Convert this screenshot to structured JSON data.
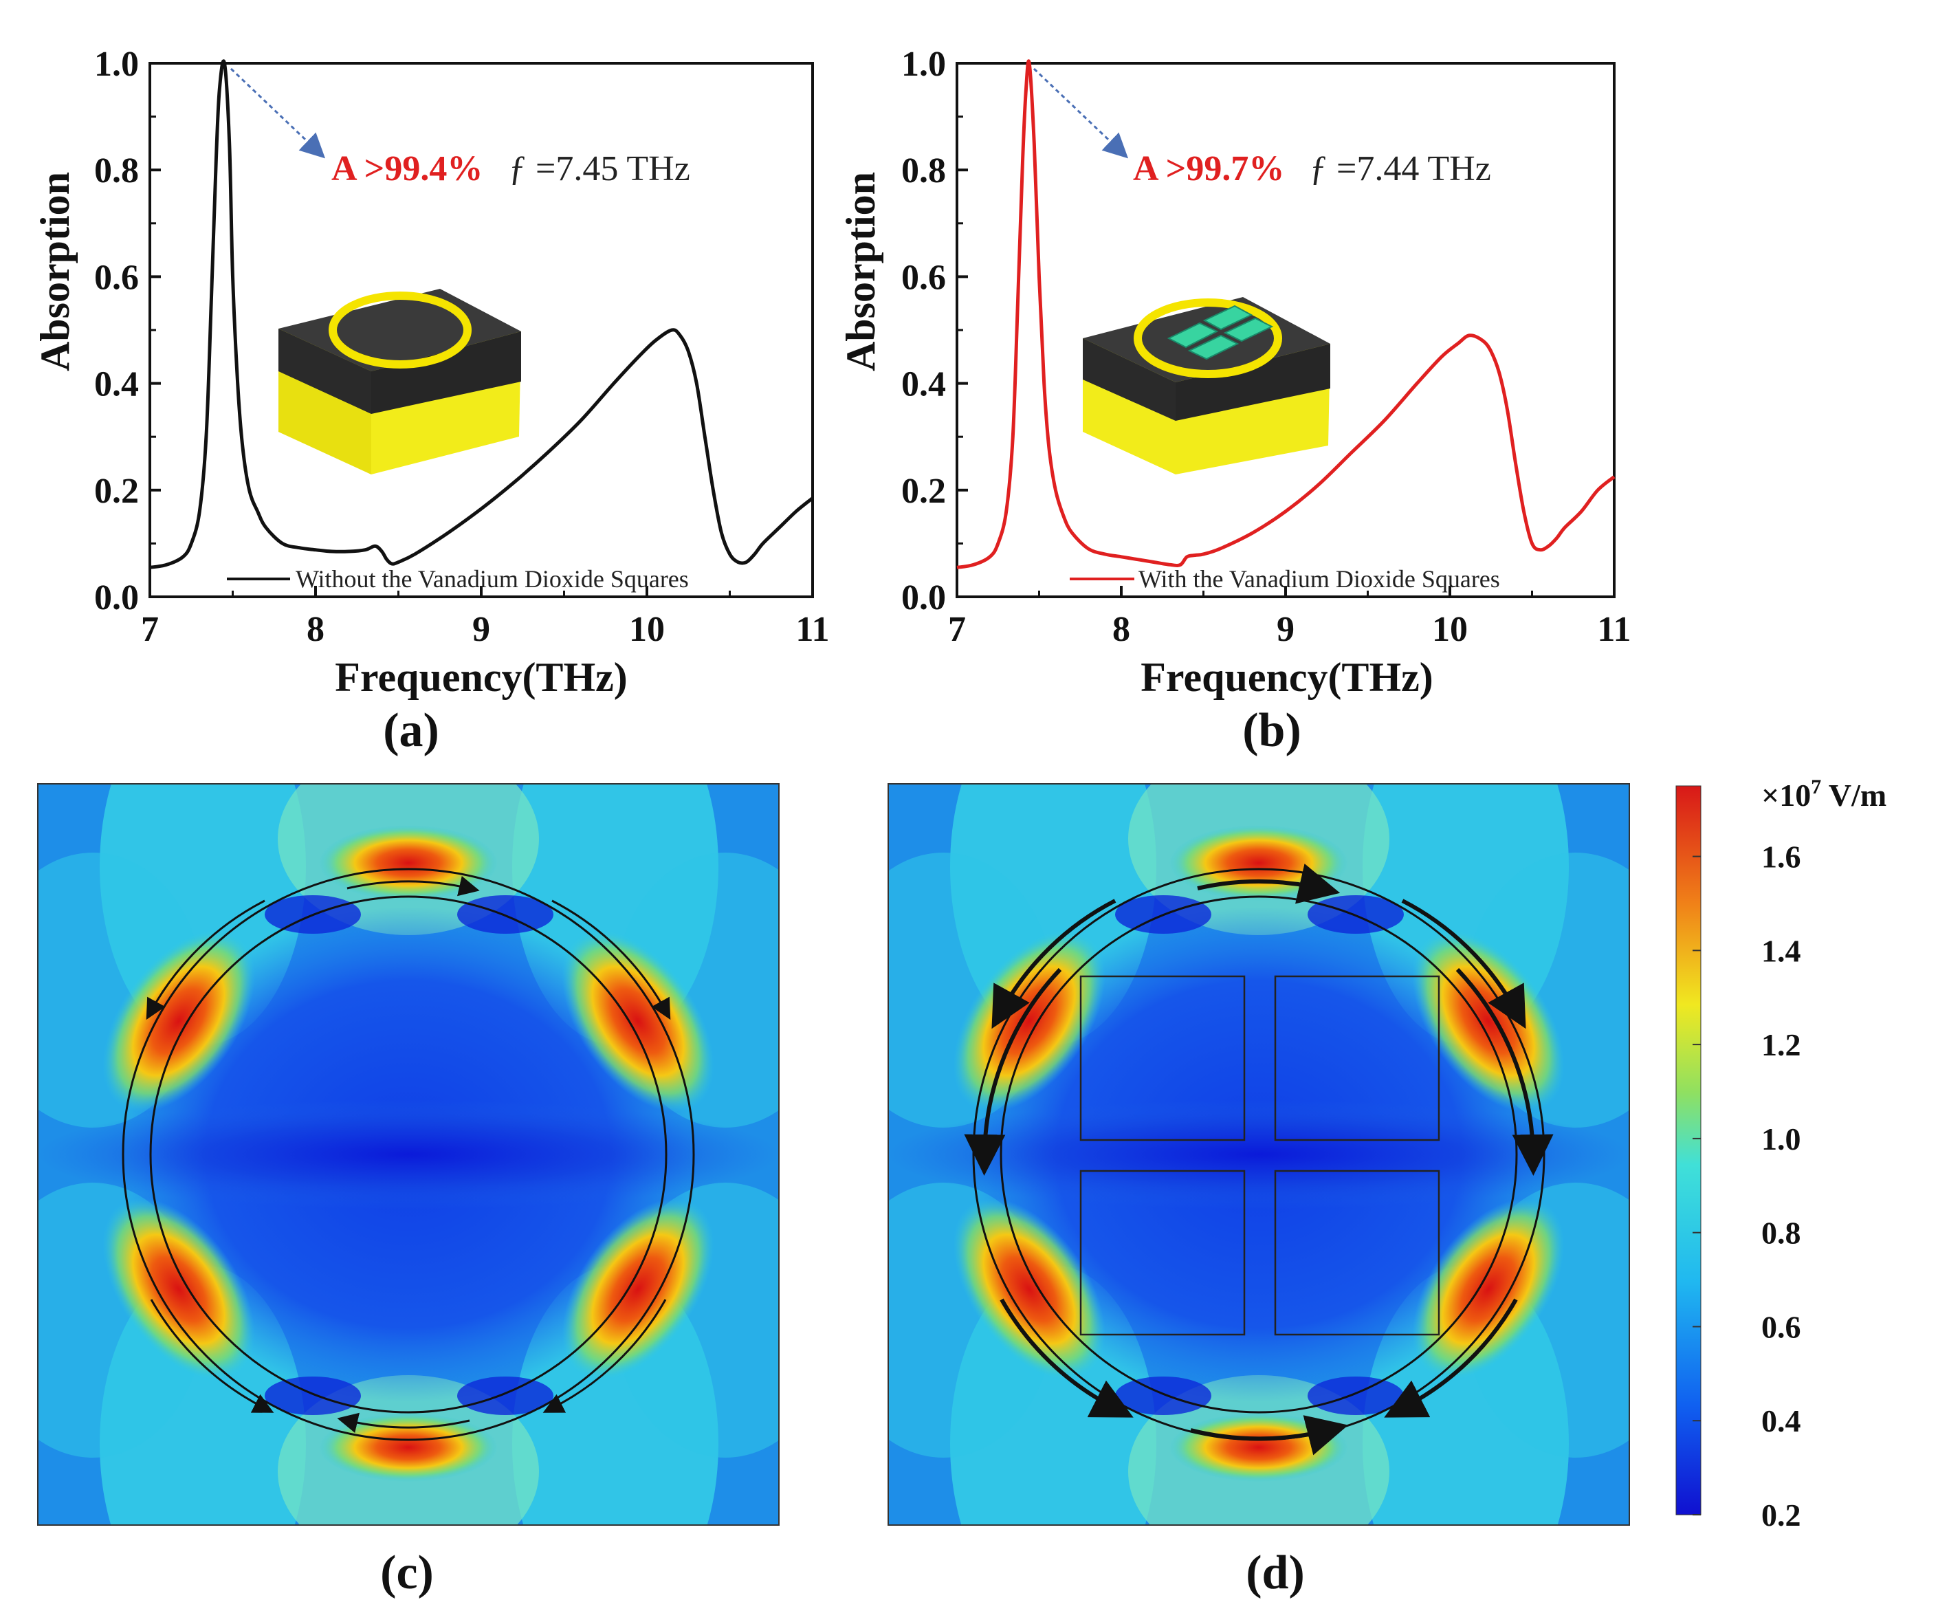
{
  "colors": {
    "black_curve": "#111111",
    "red_curve": "#e02020",
    "annotation_red": "#e02020",
    "arrow_blue": "#4a6fb5",
    "substrate_top": "#3a3a3a",
    "substrate_side": "#2a2a2a",
    "gold_layer": "#f2ec1a",
    "ring": "#f5e400",
    "vo2_square": "#38d4a0"
  },
  "chart_data": [
    {
      "panel": "(a)",
      "type": "line",
      "xlabel": "Frequency(THz)",
      "ylabel": "Absorption",
      "xlim": [
        7,
        11
      ],
      "ylim": [
        0,
        1.0
      ],
      "xticks": [
        "7",
        "8",
        "9",
        "10",
        "11"
      ],
      "yticks": [
        "0.0",
        "0.2",
        "0.4",
        "0.6",
        "0.8",
        "1.0"
      ],
      "legend": "Without the Vanadium Dioxide Squares",
      "legend_position": "bottom",
      "annotation": {
        "highlight": "A >99.4%",
        "text": "ƒ =7.45 THz"
      },
      "inset": "ring-only",
      "series": [
        {
          "name": "Without the Vanadium Dioxide Squares",
          "x": [
            7.0,
            7.1,
            7.2,
            7.25,
            7.3,
            7.34,
            7.37,
            7.4,
            7.42,
            7.45,
            7.48,
            7.5,
            7.53,
            7.56,
            7.6,
            7.65,
            7.7,
            7.8,
            7.9,
            8.0,
            8.1,
            8.2,
            8.3,
            8.36,
            8.4,
            8.43,
            8.46,
            8.5,
            8.6,
            8.8,
            9.0,
            9.2,
            9.4,
            9.6,
            9.8,
            9.95,
            10.05,
            10.15,
            10.2,
            10.25,
            10.3,
            10.35,
            10.4,
            10.45,
            10.5,
            10.55,
            10.6,
            10.65,
            10.7,
            10.8,
            10.9,
            11.0
          ],
          "y": [
            0.055,
            0.06,
            0.075,
            0.1,
            0.16,
            0.3,
            0.55,
            0.82,
            0.95,
            1.0,
            0.85,
            0.6,
            0.4,
            0.28,
            0.2,
            0.16,
            0.13,
            0.1,
            0.092,
            0.088,
            0.085,
            0.085,
            0.088,
            0.095,
            0.085,
            0.07,
            0.062,
            0.065,
            0.08,
            0.12,
            0.165,
            0.215,
            0.27,
            0.33,
            0.4,
            0.45,
            0.48,
            0.5,
            0.49,
            0.46,
            0.4,
            0.3,
            0.2,
            0.12,
            0.08,
            0.065,
            0.065,
            0.08,
            0.1,
            0.13,
            0.16,
            0.185
          ]
        }
      ]
    },
    {
      "panel": "(b)",
      "type": "line",
      "xlabel": "Frequency(THz)",
      "ylabel": "Absorption",
      "xlim": [
        7,
        11
      ],
      "ylim": [
        0,
        1.0
      ],
      "xticks": [
        "7",
        "8",
        "9",
        "10",
        "11"
      ],
      "yticks": [
        "0.0",
        "0.2",
        "0.4",
        "0.6",
        "0.8",
        "1.0"
      ],
      "legend": "With the Vanadium Dioxide Squares",
      "legend_position": "bottom",
      "annotation": {
        "highlight": "A >99.7%",
        "text": "ƒ =7.44 THz"
      },
      "inset": "ring-with-squares",
      "series": [
        {
          "name": "With the Vanadium Dioxide Squares",
          "x": [
            7.0,
            7.1,
            7.2,
            7.25,
            7.3,
            7.34,
            7.37,
            7.4,
            7.42,
            7.44,
            7.47,
            7.5,
            7.53,
            7.56,
            7.6,
            7.65,
            7.7,
            7.8,
            7.9,
            8.0,
            8.1,
            8.2,
            8.3,
            8.36,
            8.4,
            8.45,
            8.5,
            8.6,
            8.8,
            9.0,
            9.2,
            9.4,
            9.6,
            9.8,
            9.95,
            10.05,
            10.12,
            10.2,
            10.25,
            10.3,
            10.35,
            10.4,
            10.45,
            10.5,
            10.55,
            10.6,
            10.65,
            10.7,
            10.8,
            10.9,
            11.0
          ],
          "y": [
            0.055,
            0.06,
            0.075,
            0.1,
            0.16,
            0.3,
            0.55,
            0.82,
            0.95,
            1.0,
            0.85,
            0.6,
            0.4,
            0.28,
            0.2,
            0.15,
            0.12,
            0.09,
            0.08,
            0.075,
            0.07,
            0.065,
            0.06,
            0.06,
            0.075,
            0.078,
            0.08,
            0.09,
            0.12,
            0.16,
            0.21,
            0.27,
            0.33,
            0.4,
            0.45,
            0.475,
            0.49,
            0.48,
            0.46,
            0.42,
            0.35,
            0.25,
            0.16,
            0.1,
            0.088,
            0.095,
            0.11,
            0.13,
            0.16,
            0.2,
            0.225
          ]
        }
      ]
    },
    {
      "panel": "(c)",
      "type": "heatmap",
      "description_kind": "electric field distribution, ring only",
      "squares": false
    },
    {
      "panel": "(d)",
      "type": "heatmap",
      "description_kind": "electric field distribution, ring with four squares",
      "squares": true,
      "colorbar": {
        "unit_prefix": "×10",
        "unit_exp": "7",
        "unit_suffix": " V/m",
        "ticks": [
          "1.6",
          "1.4",
          "1.2",
          "1.0",
          "0.8",
          "0.6",
          "0.4",
          "0.2"
        ],
        "range": [
          0.2,
          1.75
        ]
      }
    }
  ]
}
